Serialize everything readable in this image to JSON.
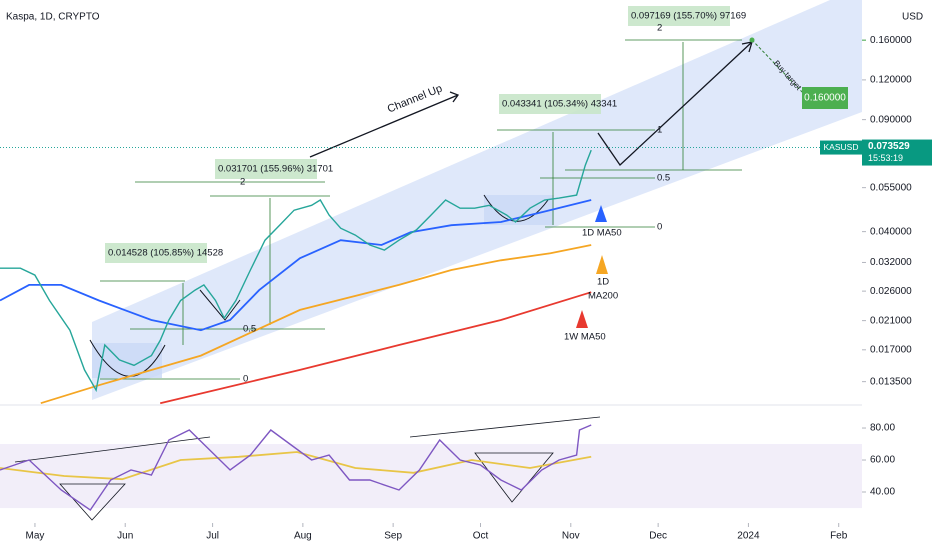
{
  "chart_data": [
    {
      "type": "line",
      "title": "Kaspa, 1D, CRYPTO",
      "currency": "USD",
      "log_scale": true,
      "xlim": [
        -12,
        284
      ],
      "ylim": [
        0.0114,
        0.214
      ],
      "yticks": [
        {
          "value": 0.16,
          "label": "0.160000"
        },
        {
          "value": 0.12,
          "label": "0.120000"
        },
        {
          "value": 0.09,
          "label": "0.090000"
        },
        {
          "value": 0.055,
          "label": "0.055000"
        },
        {
          "value": 0.04,
          "label": "0.040000"
        },
        {
          "value": 0.032,
          "label": "0.032000"
        },
        {
          "value": 0.026,
          "label": "0.026000"
        },
        {
          "value": 0.021,
          "label": "0.021000"
        },
        {
          "value": 0.017,
          "label": "0.017000"
        },
        {
          "value": 0.0135,
          "label": "0.013500"
        }
      ],
      "series": [
        {
          "color": "#26a69a",
          "x": [
            -12,
            -5,
            0,
            5,
            12,
            17,
            21,
            24,
            29,
            34,
            40,
            43,
            46,
            50,
            55,
            58,
            62,
            65,
            69,
            74,
            79,
            84,
            89,
            95,
            98,
            101,
            105,
            110,
            115,
            120,
            125,
            131,
            136,
            141,
            146,
            151,
            156,
            162,
            165,
            170,
            175,
            180,
            186,
            189,
            191
          ],
          "values": [
            0.0307,
            0.0307,
            0.0292,
            0.0243,
            0.0196,
            0.0147,
            0.0127,
            0.0176,
            0.0158,
            0.0152,
            0.0163,
            0.0182,
            0.0211,
            0.0243,
            0.0262,
            0.0272,
            0.0243,
            0.0214,
            0.0243,
            0.0303,
            0.0376,
            0.0419,
            0.0467,
            0.0484,
            0.0503,
            0.0451,
            0.041,
            0.039,
            0.0363,
            0.035,
            0.0376,
            0.0405,
            0.0451,
            0.0503,
            0.0474,
            0.0474,
            0.0484,
            0.0451,
            0.0429,
            0.0474,
            0.0503,
            0.051,
            0.0521,
            0.0647,
            0.0722
          ]
        },
        {
          "color": "#2962ff",
          "x": [
            -12,
            -2,
            9,
            22,
            40,
            57,
            67,
            77,
            91,
            105,
            119,
            129,
            143,
            160,
            174,
            191
          ],
          "values": [
            0.0243,
            0.0272,
            0.0272,
            0.0243,
            0.0211,
            0.0196,
            0.0211,
            0.0262,
            0.033,
            0.0376,
            0.0363,
            0.0398,
            0.0419,
            0.0429,
            0.046,
            0.0503
          ]
        },
        {
          "color": "#f5a623",
          "x": [
            2,
            22,
            57,
            91,
            125,
            143,
            160,
            177,
            191
          ],
          "values": [
            0.01155,
            0.01316,
            0.0163,
            0.0227,
            0.0272,
            0.0303,
            0.0325,
            0.0342,
            0.0363
          ]
        },
        {
          "color": "#e8392f",
          "x": [
            43,
            91,
            125,
            160,
            191
          ],
          "values": [
            0.01155,
            0.0147,
            0.0176,
            0.0211,
            0.0258
          ]
        }
      ],
      "last_price": {
        "symbol": "KASUSD",
        "value": 0.073529,
        "label": "0.073529",
        "countdown": "15:53:19"
      },
      "target": {
        "text": "Buy target",
        "value": 0.16,
        "label": "0.160000"
      },
      "annotations": [
        "Channel Up",
        "0.014528 (105.85%) 14528",
        "0.031701 (155.96%) 31701",
        "0.043341 (105.34%) 43341",
        "0.097169 (155.70%) 97169",
        "2",
        "0.5",
        "0",
        "2",
        "1",
        "0.5",
        "0",
        "1D MA50",
        "1D",
        "MA200",
        "1W MA50"
      ]
    },
    {
      "type": "line",
      "xlim": [
        -12,
        284
      ],
      "ylim": [
        22.5,
        94.4
      ],
      "band": [
        30,
        70
      ],
      "yticks": [
        {
          "value": 80,
          "label": "80.00"
        },
        {
          "value": 60,
          "label": "60.00"
        },
        {
          "value": 40,
          "label": "40.00"
        }
      ],
      "xticks": [
        {
          "value": 0,
          "label": "May"
        },
        {
          "value": 31,
          "label": "Jun"
        },
        {
          "value": 61,
          "label": "Jul"
        },
        {
          "value": 92,
          "label": "Aug"
        },
        {
          "value": 123,
          "label": "Sep"
        },
        {
          "value": 153,
          "label": "Oct"
        },
        {
          "value": 184,
          "label": "Nov"
        },
        {
          "value": 214,
          "label": "Dec"
        },
        {
          "value": 245,
          "label": "2024"
        },
        {
          "value": 276,
          "label": "Feb"
        }
      ],
      "series": [
        {
          "color": "#7e57c2",
          "x": [
            -12,
            -2,
            9,
            19,
            26,
            33,
            40,
            46,
            53,
            60,
            67,
            74,
            81,
            88,
            95,
            101,
            108,
            115,
            125,
            132,
            139,
            146,
            153,
            160,
            167,
            174,
            180,
            186,
            187,
            191
          ],
          "values": [
            53.75,
            60,
            41.25,
            28.75,
            47.5,
            53.75,
            50.6,
            72.5,
            78.75,
            66.25,
            53.75,
            63.1,
            78.75,
            69.4,
            60,
            63.1,
            47.5,
            47.5,
            41.25,
            53.75,
            72.5,
            60,
            56.9,
            47.5,
            41.25,
            53.75,
            60,
            63.1,
            78.75,
            81.9
          ]
        },
        {
          "color": "#e8c547",
          "x": [
            -12,
            10,
            30,
            50,
            70,
            90,
            110,
            130,
            150,
            170,
            191
          ],
          "values": [
            55,
            50,
            48,
            60,
            62,
            65,
            55,
            52,
            60,
            55,
            62
          ]
        }
      ]
    }
  ]
}
